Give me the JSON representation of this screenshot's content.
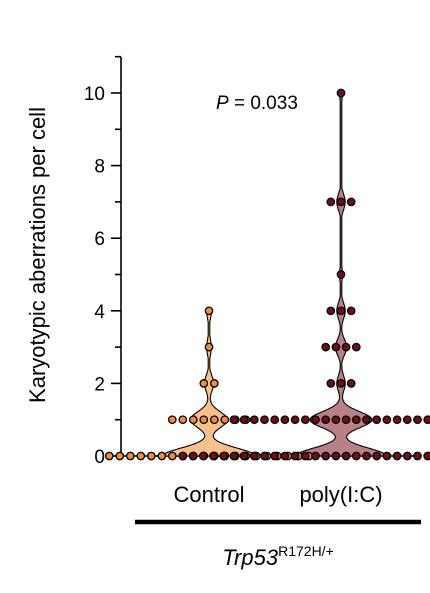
{
  "chart_data": {
    "type": "scatter",
    "subtype": "violin",
    "ylabel": "Karyotypic aberrations per cell",
    "ylim": [
      0,
      11
    ],
    "y_ticks": [
      0,
      2,
      4,
      6,
      8,
      10
    ],
    "categories": [
      "Control",
      "poly(I:C)"
    ],
    "group_label": {
      "main": "Trp53",
      "superscript": "R172H/+"
    },
    "annotation": {
      "p_symbol": "P",
      "p_text": " = 0.033"
    },
    "grid": false,
    "colors": {
      "control_fill": "#f7c18b",
      "control_dot": "#f08c3c",
      "polyic_fill": "#b98087",
      "polyic_dot": "#6e0f17",
      "outline": "#000000"
    },
    "series": [
      {
        "name": "Control",
        "values": [
          0,
          0,
          0,
          0,
          0,
          0,
          0,
          0,
          0,
          0,
          0,
          0,
          0,
          0,
          0,
          0,
          0,
          0,
          0,
          0,
          1,
          1,
          1,
          1,
          1,
          1,
          1,
          1,
          2,
          2,
          3,
          4
        ]
      },
      {
        "name": "poly(I:C)",
        "values": [
          0,
          0,
          0,
          0,
          0,
          0,
          0,
          0,
          0,
          0,
          0,
          0,
          0,
          0,
          0,
          0,
          0,
          0,
          0,
          0,
          0,
          0,
          0,
          0,
          0,
          0,
          0,
          0,
          0,
          0,
          0,
          0,
          1,
          1,
          1,
          1,
          1,
          1,
          1,
          1,
          1,
          1,
          1,
          1,
          1,
          1,
          1,
          1,
          1,
          1,
          1,
          1,
          1,
          1,
          2,
          2,
          2,
          3,
          3,
          3,
          3,
          4,
          4,
          4,
          5,
          7,
          7,
          7,
          10
        ]
      }
    ]
  }
}
